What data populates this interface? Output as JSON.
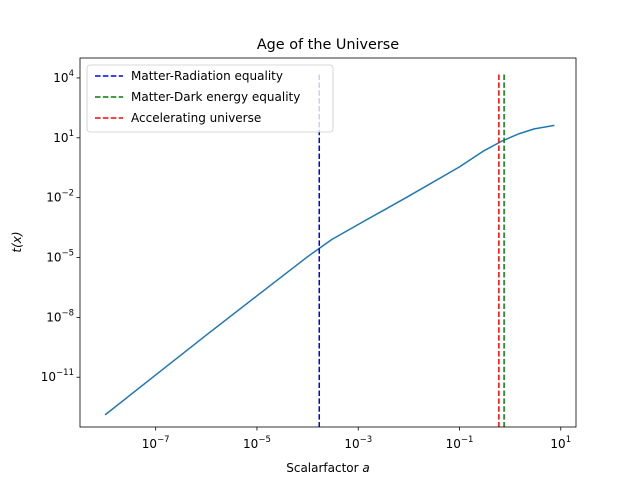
{
  "chart_data": {
    "type": "line",
    "title": "Age of the Universe",
    "xlabel_text": "Scalarfactor ",
    "xlabel_var": "a",
    "ylabel": "t(x)",
    "x_scale": "log",
    "y_scale": "log",
    "xlim": [
      3.2e-09,
      20
    ],
    "ylim": [
      3.2e-14,
      100000.0
    ],
    "x_ticks": [
      {
        "value": 1e-07,
        "base": "10",
        "exp": "−7"
      },
      {
        "value": 1e-05,
        "base": "10",
        "exp": "−5"
      },
      {
        "value": 0.001,
        "base": "10",
        "exp": "−3"
      },
      {
        "value": 0.1,
        "base": "10",
        "exp": "−1"
      },
      {
        "value": 10,
        "base": "10",
        "exp": "1"
      }
    ],
    "y_ticks": [
      {
        "value": 1e-11,
        "base": "10",
        "exp": "−11"
      },
      {
        "value": 1e-08,
        "base": "10",
        "exp": "−8"
      },
      {
        "value": 1e-05,
        "base": "10",
        "exp": "−5"
      },
      {
        "value": 0.01,
        "base": "10",
        "exp": "−2"
      },
      {
        "value": 10,
        "base": "10",
        "exp": "1"
      },
      {
        "value": 10000.0,
        "base": "10",
        "exp": "4"
      }
    ],
    "curve": {
      "color": "#1f77b4",
      "points": [
        [
          1e-08,
          1.3e-13
        ],
        [
          1e-07,
          1.3e-11
        ],
        [
          1e-06,
          1.3e-09
        ],
        [
          1e-05,
          1.2e-07
        ],
        [
          0.0001,
          1.1e-05
        ],
        [
          0.0003,
          8e-05
        ],
        [
          0.001,
          0.00045
        ],
        [
          0.01,
          0.012
        ],
        [
          0.1,
          0.35
        ],
        [
          0.3,
          2.2
        ],
        [
          0.7,
          7.0
        ],
        [
          1.5,
          16
        ],
        [
          3,
          28
        ],
        [
          7.5,
          42
        ]
      ]
    },
    "vlines": [
      {
        "name": "Matter-Radiation equality",
        "x": 0.00017,
        "color": "#0000ff"
      },
      {
        "name": "Matter-Dark energy equality",
        "x": 0.76,
        "color": "#008000"
      },
      {
        "name": "Accelerating universe",
        "x": 0.6,
        "color": "#ff0000"
      }
    ],
    "vline_top": 15000.0,
    "legend_location": "upper left",
    "grid": false
  }
}
